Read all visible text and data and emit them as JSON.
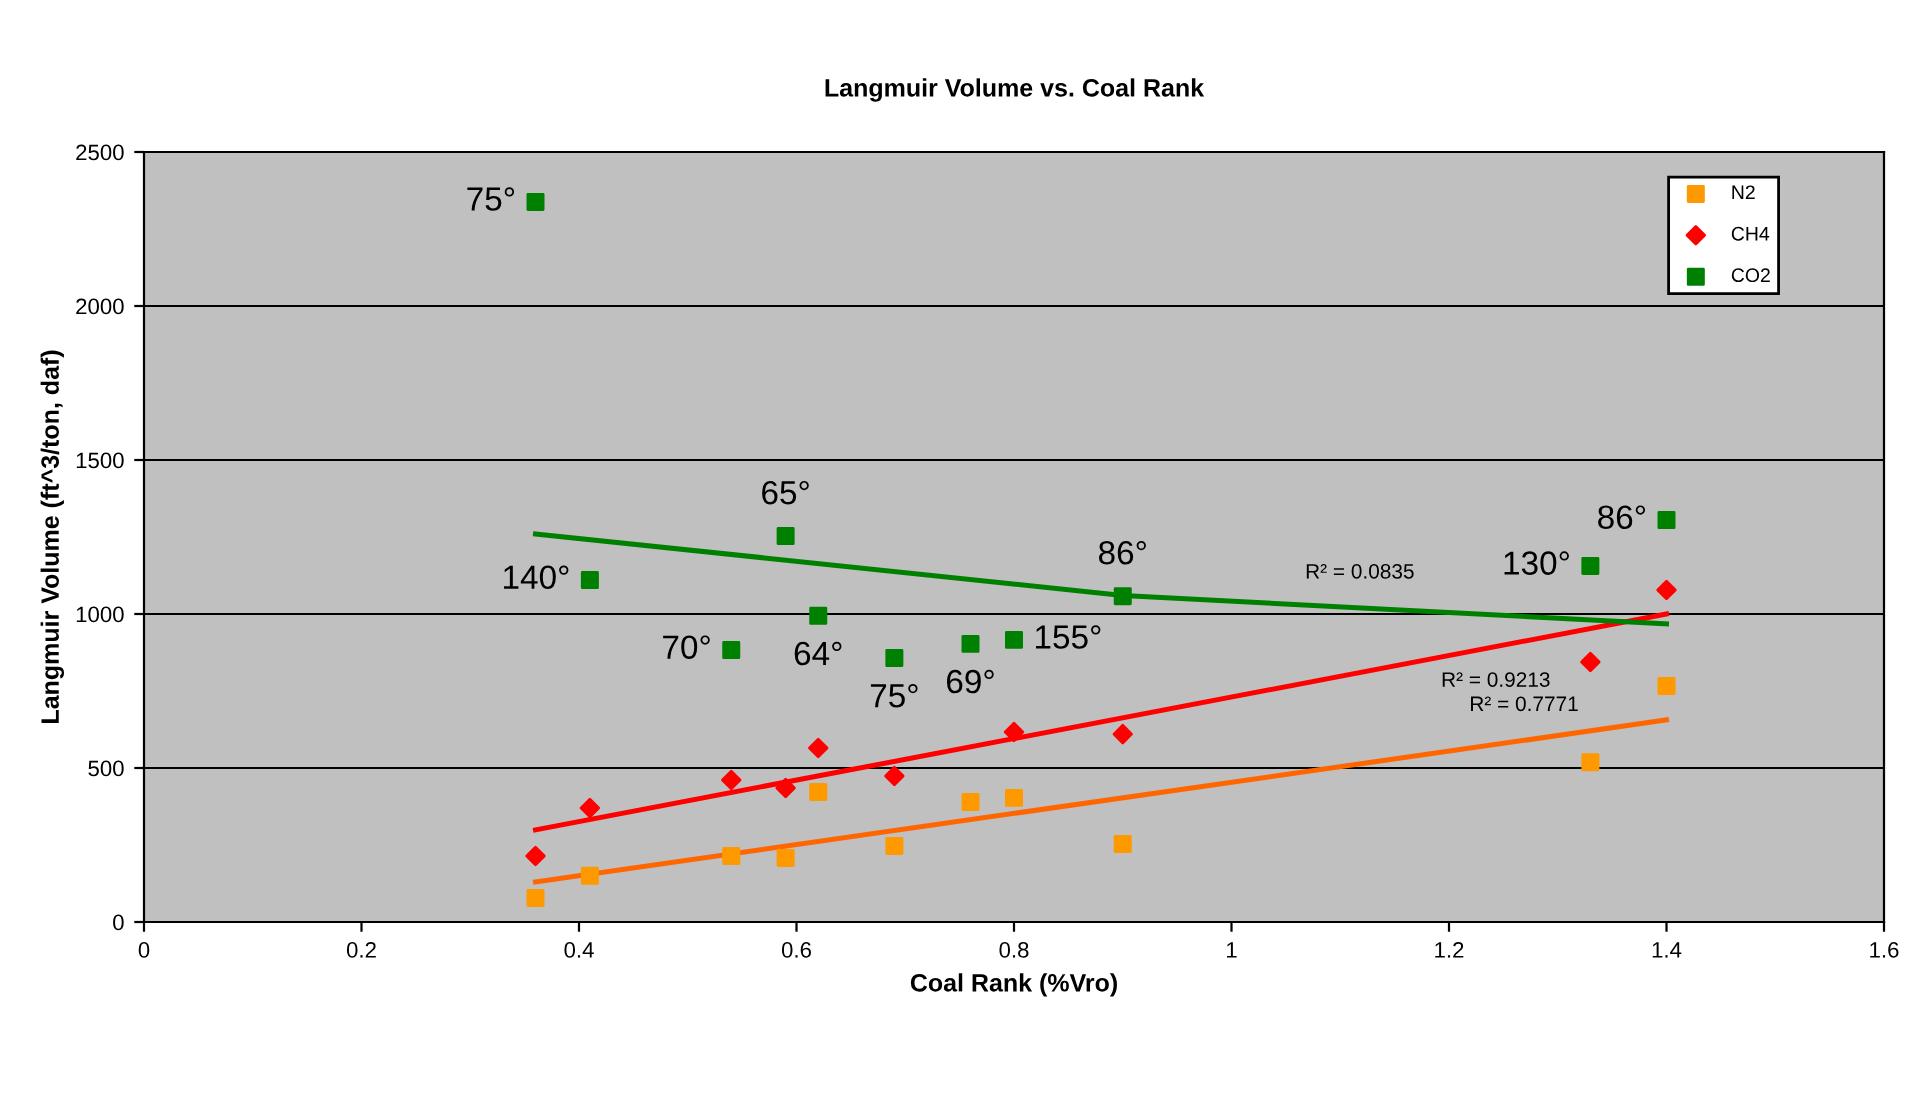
{
  "chart_data": {
    "type": "scatter",
    "title": "Langmuir Volume vs. Coal Rank",
    "xlabel": "Coal Rank (%Vro)",
    "ylabel": "Langmuir Volume (ft^3/ton, daf)",
    "xlim": [
      0,
      1.6
    ],
    "xticks": [
      0,
      0.2,
      0.4,
      0.6,
      0.8,
      1,
      1.2,
      1.4,
      1.6
    ],
    "ylim": [
      0,
      2500
    ],
    "yticks": [
      0,
      500,
      1000,
      1500,
      2000,
      2500
    ],
    "grid": "y",
    "legend": "top right",
    "series": [
      {
        "name": "N2",
        "color": "#ff9900",
        "marker": "square",
        "x": [
          0.36,
          0.41,
          0.54,
          0.59,
          0.62,
          0.69,
          0.76,
          0.8,
          0.9,
          1.33,
          1.4
        ],
        "values": [
          78,
          150,
          214,
          208,
          422,
          247,
          390,
          403,
          253,
          519,
          766
        ]
      },
      {
        "name": "CH4",
        "color": "#ff0000",
        "marker": "diamond",
        "x": [
          0.36,
          0.41,
          0.54,
          0.59,
          0.62,
          0.69,
          0.8,
          0.9,
          1.33,
          1.4
        ],
        "values": [
          214,
          370,
          461,
          435,
          565,
          474,
          617,
          610,
          844,
          1078
        ]
      },
      {
        "name": "CO2",
        "color": "#008000",
        "marker": "square",
        "x": [
          0.36,
          0.41,
          0.54,
          0.59,
          0.62,
          0.69,
          0.76,
          0.8,
          0.9,
          1.33,
          1.4
        ],
        "values": [
          2338,
          1110,
          883,
          1253,
          994,
          857,
          903,
          916,
          1058,
          1156,
          1305
        ]
      },
      {
        "type": "line",
        "color": "#ff6600",
        "x": [
          0.36,
          1.4
        ],
        "values": [
          130,
          656
        ]
      },
      {
        "type": "line",
        "color": "#ff0000",
        "x": [
          0.36,
          1.4
        ],
        "values": [
          299,
          1000
        ]
      },
      {
        "type": "line",
        "color": "#008000",
        "x": [
          0.36,
          0.9,
          1.4
        ],
        "values": [
          1260,
          1060,
          968
        ]
      }
    ],
    "annotations": [
      {
        "text": "75°",
        "x": 0.36,
        "y": 2338
      },
      {
        "text": "140°",
        "x": 0.41,
        "y": 1110
      },
      {
        "text": "65°",
        "x": 0.59,
        "y": 1253
      },
      {
        "text": "64°",
        "x": 0.62,
        "y": 994
      },
      {
        "text": "70°",
        "x": 0.54,
        "y": 883
      },
      {
        "text": "75°",
        "x": 0.69,
        "y": 857
      },
      {
        "text": "69°",
        "x": 0.76,
        "y": 903
      },
      {
        "text": "155°",
        "x": 0.8,
        "y": 916
      },
      {
        "text": "86°",
        "x": 0.9,
        "y": 1058
      },
      {
        "text": "130°",
        "x": 1.33,
        "y": 1156
      },
      {
        "text": "86°",
        "x": 1.4,
        "y": 1305
      },
      {
        "text": "R² = 0.0835",
        "x": 1.118,
        "y": 1020
      },
      {
        "text": "R² = 0.9213",
        "x": 1.243,
        "y": 894
      },
      {
        "text": "R² = 0.7771",
        "x": 1.269,
        "y": 590
      }
    ]
  }
}
